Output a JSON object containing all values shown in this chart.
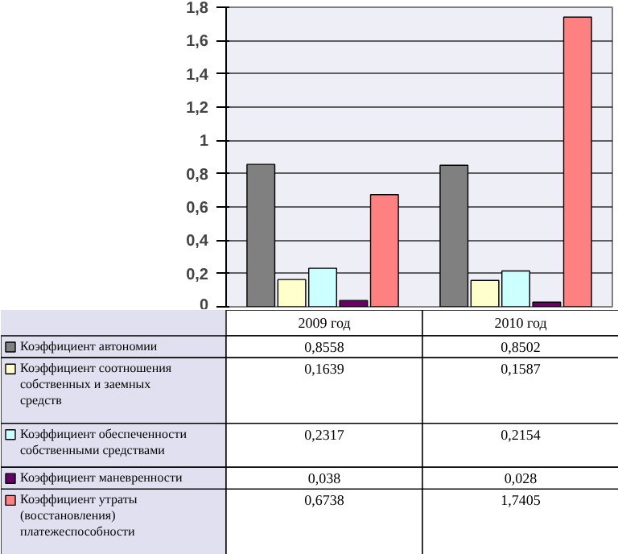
{
  "chart_data": {
    "type": "bar",
    "categories": [
      "2009 год",
      "2010 год"
    ],
    "series": [
      {
        "name": "Коэффициент автономии",
        "color": "#808080",
        "values": [
          0.8558,
          0.8502
        ],
        "value_labels": [
          "0,8558",
          "0,8502"
        ]
      },
      {
        "name": "Коэффициент соотношения собственных и заемных средств",
        "color": "#ffffcc",
        "values": [
          0.1639,
          0.1587
        ],
        "value_labels": [
          "0,1639",
          "0,1587"
        ]
      },
      {
        "name": "Коэффициент обеспеченности собственными средствами",
        "color": "#ccffff",
        "values": [
          0.2317,
          0.2154
        ],
        "value_labels": [
          "0,2317",
          "0,2154"
        ]
      },
      {
        "name": "Коэффициент маневренности",
        "color": "#660066",
        "values": [
          0.038,
          0.028
        ],
        "value_labels": [
          "0,038",
          "0,028"
        ]
      },
      {
        "name": "Коэффициент утраты (восстановления) платежеспособности",
        "color": "#ff8080",
        "values": [
          0.6738,
          1.7405
        ],
        "value_labels": [
          "0,6738",
          "1,7405"
        ]
      }
    ],
    "ylim": [
      0,
      1.8
    ],
    "yticks": [
      0,
      {
        "value": 0.2,
        "label": "0,2"
      },
      {
        "value": 0.4,
        "label": "0,4"
      },
      {
        "value": 0.6,
        "label": "0,6"
      },
      {
        "value": 0.8,
        "label": "0,8"
      },
      1,
      {
        "value": 1.2,
        "label": "1,2"
      },
      {
        "value": 1.4,
        "label": "1,4"
      },
      {
        "value": 1.6,
        "label": "1,6"
      },
      {
        "value": 1.8,
        "label": "1,8"
      }
    ],
    "grid": "y",
    "legend": "bottom"
  }
}
